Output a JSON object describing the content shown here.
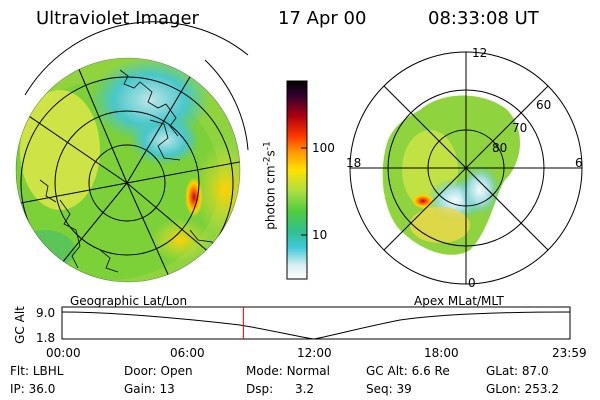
{
  "header": {
    "instrument": "Ultraviolet Imager",
    "date": "17 Apr 00",
    "time": "08:33:08 UT"
  },
  "left_panel": {
    "caption": "Geographic Lat/Lon"
  },
  "right_panel": {
    "caption": "Apex MLat/MLT",
    "mlt_labels": [
      "12",
      "18",
      "6",
      "0"
    ],
    "lat_labels": [
      "60",
      "70",
      "80"
    ]
  },
  "colorbar": {
    "unit": "photon cm",
    "unit_exp1": "-2",
    "unit_s": "s",
    "unit_exp2": "-1",
    "tick_100": "100",
    "tick_10": "10"
  },
  "timeline": {
    "axis_label": "GC Alt",
    "y_top": "9.0",
    "y_bottom": "1.8",
    "ticks": [
      "00:00",
      "06:00",
      "12:00",
      "18:00",
      "23:59"
    ],
    "current_time_fraction": 0.357
  },
  "info": {
    "flt_label": "Flt:",
    "flt_value": "LBHL",
    "ip_label": "IP:",
    "ip_value": "36.0",
    "door_label": "Door:",
    "door_value": "Open",
    "gain_label": "Gain:",
    "gain_value": "13",
    "mode_label": "Mode:",
    "mode_value": "Normal",
    "dsp_label": "Dsp:",
    "dsp_value": "3.2",
    "gcalt_label": "GC Alt:",
    "gcalt_value": "6.6 Re",
    "seq_label": "Seq:",
    "seq_value": "39",
    "glat_label": "GLat:",
    "glat_value": "87.0",
    "glon_label": "GLon:",
    "glon_value": "253.2"
  },
  "colors": {
    "background": "#ffffff",
    "grid": "#000000",
    "marker": "#e00000"
  }
}
